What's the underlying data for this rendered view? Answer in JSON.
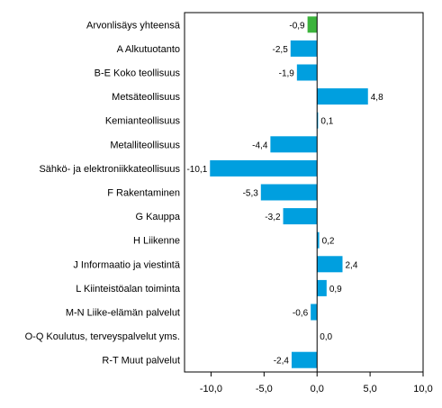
{
  "chart_data": {
    "type": "bar",
    "orientation": "horizontal",
    "title": "",
    "xlabel": "",
    "ylabel": "",
    "categories": [
      "Arvonlisäys yhteensä",
      "A Alkutuotanto",
      "B-E Koko teollisuus",
      "Metsäteollisuus",
      "Kemianteollisuus",
      "Metalliteollisuus",
      "Sähkö- ja elektroniikkateollisuus",
      "F Rakentaminen",
      "G Kauppa",
      "H Liikenne",
      "J Informaatio ja viestintä",
      "L Kiinteistöalan toiminta",
      "M-N Liike-elämän palvelut",
      "O-Q Koulutus, terveyspalvelut yms.",
      "R-T Muut palvelut"
    ],
    "values": [
      -0.9,
      -2.5,
      -1.9,
      4.8,
      0.1,
      -4.4,
      -10.1,
      -5.3,
      -3.2,
      0.2,
      2.4,
      0.9,
      -0.6,
      0.0,
      -2.4
    ],
    "value_labels": [
      "-0,9",
      "-2,5",
      "-1,9",
      "4,8",
      "0,1",
      "-4,4",
      "-10,1",
      "-5,3",
      "-3,2",
      "0,2",
      "2,4",
      "0,9",
      "-0,6",
      "0,0",
      "-2,4"
    ],
    "xlim": [
      -12.5,
      10.0
    ],
    "xticks": [
      -10,
      -5,
      0,
      5,
      10
    ],
    "xtick_labels": [
      "-10,0",
      "-5,0",
      "0,0",
      "5,0",
      "10,0"
    ],
    "grid": false,
    "legend": "none",
    "colors": {
      "bar": "#009fdf",
      "highlight": "#3cb33c",
      "highlight_index": 0
    }
  }
}
